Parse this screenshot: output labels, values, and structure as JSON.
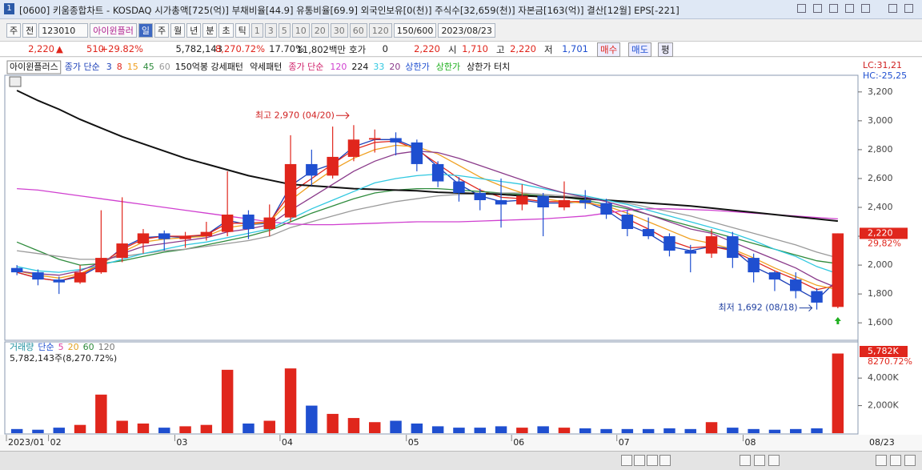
{
  "header": {
    "title": "[0600] 키움종합차트 - KOSDAQ 시가총액[725(억)] 부채비율[44.9] 유통비율[69.9] 외국인보유[0(천)] 주식수[32,659(천)] 자본금[163(억)] 결산[12월] EPS[-221]",
    "window_number": "1"
  },
  "toolbar": {
    "items": [
      "주",
      "전",
      "123010",
      "아이윈플러",
      "일",
      "주",
      "월",
      "년",
      "분",
      "초",
      "틱",
      "1",
      "3",
      "5",
      "10",
      "20",
      "30",
      "60",
      "120",
      "150/600",
      "2023/08/23"
    ]
  },
  "quote": {
    "items": [
      {
        "text": "2,220",
        "color": "#e0261c"
      },
      {
        "text": "510",
        "color": "#e0261c"
      },
      {
        "text": "+29.82%",
        "color": "#e0261c"
      },
      {
        "text": "5,782,143",
        "color": "#222222"
      },
      {
        "text": "8,270.72%",
        "color": "#e0261c"
      },
      {
        "text": "17.70%",
        "color": "#222222"
      },
      {
        "text": "11,802백만",
        "color": "#222222"
      },
      {
        "text": "호가",
        "color": "#222222"
      },
      {
        "text": "0",
        "color": "#222222"
      },
      {
        "text": "2,220",
        "color": "#e0261c"
      },
      {
        "text": "시",
        "color": "#222222"
      },
      {
        "text": "1,710",
        "color": "#e0261c"
      },
      {
        "text": "고",
        "color": "#222222"
      },
      {
        "text": "2,220",
        "color": "#e0261c"
      },
      {
        "text": "저",
        "color": "#222222"
      },
      {
        "text": "1,701",
        "color": "#1f4fd0"
      },
      {
        "text": "매수",
        "color": "#e0261c"
      },
      {
        "text": "매도",
        "color": "#1f4fd0"
      },
      {
        "text": "평",
        "color": "#222222"
      }
    ]
  },
  "chart_data": [
    {
      "type": "candlestick",
      "categories": [
        "2023/01",
        null,
        "02",
        null,
        null,
        null,
        null,
        null,
        "03",
        null,
        null,
        null,
        null,
        "04",
        null,
        null,
        null,
        null,
        null,
        "05",
        null,
        null,
        null,
        null,
        "06",
        null,
        null,
        null,
        null,
        "07",
        null,
        null,
        null,
        null,
        null,
        "08",
        null,
        null,
        null,
        null
      ],
      "open": [
        1980,
        1950,
        1900,
        1880,
        1950,
        2050,
        2150,
        2220,
        2180,
        2200,
        2230,
        2350,
        2250,
        2330,
        2700,
        2620,
        2750,
        2870,
        2880,
        2850,
        2700,
        2580,
        2500,
        2450,
        2420,
        2480,
        2400,
        2450,
        2430,
        2350,
        2250,
        2200,
        2100,
        2080,
        2200,
        2050,
        1950,
        1900,
        1820,
        1710
      ],
      "high": [
        2000,
        1970,
        1920,
        2000,
        2380,
        2470,
        2250,
        2240,
        2230,
        2300,
        2650,
        2380,
        2420,
        2900,
        2800,
        2960,
        2970,
        2940,
        2920,
        2870,
        2720,
        2610,
        2530,
        2600,
        2560,
        2500,
        2580,
        2520,
        2460,
        2380,
        2330,
        2220,
        2140,
        2250,
        2230,
        2080,
        1960,
        1950,
        1840,
        2220
      ],
      "low": [
        1930,
        1860,
        1800,
        1870,
        1940,
        2020,
        2080,
        2100,
        2120,
        2170,
        2200,
        2180,
        2200,
        2300,
        2550,
        2600,
        2720,
        2780,
        2760,
        2650,
        2540,
        2440,
        2380,
        2260,
        2380,
        2200,
        2380,
        2390,
        2320,
        2200,
        2180,
        2060,
        1950,
        2050,
        1980,
        1880,
        1820,
        1770,
        1692,
        1701
      ],
      "close": [
        1950,
        1900,
        1880,
        1950,
        2050,
        2150,
        2220,
        2180,
        2200,
        2230,
        2350,
        2250,
        2330,
        2700,
        2620,
        2750,
        2870,
        2880,
        2850,
        2700,
        2580,
        2500,
        2450,
        2420,
        2480,
        2400,
        2450,
        2430,
        2350,
        2250,
        2200,
        2100,
        2080,
        2200,
        2050,
        1950,
        1900,
        1820,
        1740,
        2220
      ],
      "up_color": "#e0261c",
      "down_color": "#1f4fd0",
      "series": [
        {
          "name": "3",
          "color": "#1b3fb8",
          "values": [
            1950,
            1910,
            1890,
            1920,
            2000,
            2120,
            2190,
            2200,
            2190,
            2210,
            2310,
            2280,
            2290,
            2550,
            2650,
            2700,
            2820,
            2870,
            2870,
            2810,
            2680,
            2560,
            2480,
            2440,
            2450,
            2430,
            2430,
            2440,
            2380,
            2280,
            2220,
            2130,
            2100,
            2130,
            2110,
            1990,
            1920,
            1840,
            1760,
            1900
          ]
        },
        {
          "name": "8",
          "color": "#e0261c",
          "values": [
            1950,
            1910,
            1890,
            1930,
            2010,
            2110,
            2180,
            2200,
            2200,
            2210,
            2290,
            2290,
            2300,
            2500,
            2600,
            2700,
            2800,
            2850,
            2860,
            2800,
            2700,
            2600,
            2520,
            2470,
            2460,
            2440,
            2440,
            2440,
            2400,
            2320,
            2250,
            2170,
            2120,
            2130,
            2100,
            2030,
            1960,
            1900,
            1830,
            1860
          ]
        },
        {
          "name": "15",
          "color": "#f0a020",
          "values": [
            1960,
            1930,
            1910,
            1940,
            2010,
            2090,
            2160,
            2180,
            2190,
            2200,
            2260,
            2280,
            2300,
            2450,
            2560,
            2660,
            2740,
            2800,
            2830,
            2820,
            2770,
            2690,
            2610,
            2550,
            2500,
            2460,
            2440,
            2430,
            2410,
            2360,
            2300,
            2240,
            2180,
            2150,
            2110,
            2050,
            1980,
            1920,
            1860,
            1830
          ]
        },
        {
          "name": "45",
          "color": "#2e8b3c",
          "values": [
            2160,
            2100,
            2040,
            2000,
            2010,
            2030,
            2060,
            2090,
            2110,
            2140,
            2170,
            2200,
            2240,
            2300,
            2360,
            2410,
            2460,
            2500,
            2520,
            2530,
            2530,
            2520,
            2510,
            2500,
            2490,
            2480,
            2470,
            2450,
            2420,
            2390,
            2350,
            2310,
            2270,
            2230,
            2190,
            2150,
            2110,
            2070,
            2030,
            2010
          ]
        },
        {
          "name": "60",
          "color": "#9a9a9a",
          "values": [
            2100,
            2080,
            2060,
            2040,
            2040,
            2060,
            2080,
            2100,
            2110,
            2130,
            2150,
            2170,
            2200,
            2260,
            2300,
            2340,
            2380,
            2410,
            2440,
            2460,
            2480,
            2490,
            2495,
            2500,
            2500,
            2490,
            2480,
            2470,
            2450,
            2430,
            2400,
            2370,
            2340,
            2300,
            2260,
            2220,
            2180,
            2140,
            2090,
            2050
          ]
        },
        {
          "name": "120",
          "color": "#d040d0",
          "values": [
            2530,
            2520,
            2500,
            2480,
            2460,
            2440,
            2420,
            2400,
            2380,
            2360,
            2340,
            2320,
            2300,
            2285,
            2280,
            2280,
            2285,
            2290,
            2295,
            2300,
            2300,
            2300,
            2305,
            2310,
            2315,
            2320,
            2330,
            2340,
            2360,
            2380,
            2390,
            2390,
            2385,
            2380,
            2370,
            2360,
            2350,
            2340,
            2330,
            2320
          ]
        },
        {
          "name": "224",
          "color": "#111111",
          "values": [
            3210,
            3140,
            3080,
            3010,
            2950,
            2890,
            2840,
            2790,
            2740,
            2700,
            2660,
            2620,
            2590,
            2560,
            2550,
            2540,
            2530,
            2525,
            2520,
            2515,
            2505,
            2500,
            2495,
            2490,
            2480,
            2475,
            2470,
            2460,
            2450,
            2440,
            2430,
            2420,
            2410,
            2395,
            2380,
            2365,
            2350,
            2335,
            2320,
            2305
          ]
        },
        {
          "name": "33",
          "color": "#30c8e0",
          "values": [
            1990,
            1960,
            1950,
            1970,
            2000,
            2040,
            2080,
            2110,
            2140,
            2160,
            2190,
            2220,
            2250,
            2320,
            2390,
            2450,
            2510,
            2570,
            2600,
            2620,
            2630,
            2620,
            2600,
            2580,
            2560,
            2530,
            2500,
            2480,
            2450,
            2420,
            2380,
            2340,
            2300,
            2260,
            2220,
            2170,
            2110,
            2060,
            1990,
            1940
          ]
        },
        {
          "name": "20",
          "color": "#8a3a8a",
          "values": [
            1960,
            1940,
            1930,
            1960,
            2020,
            2080,
            2130,
            2150,
            2170,
            2190,
            2230,
            2250,
            2280,
            2380,
            2470,
            2560,
            2650,
            2720,
            2770,
            2790,
            2780,
            2740,
            2690,
            2640,
            2590,
            2540,
            2500,
            2470,
            2440,
            2400,
            2350,
            2300,
            2250,
            2220,
            2160,
            2100,
            2040,
            1980,
            1900,
            1840
          ]
        }
      ],
      "legend_texts": [
        {
          "text": "아이윈플러스",
          "color": "#111111"
        },
        {
          "text": "종가 단순",
          "color": "#1b3fb8"
        },
        {
          "text": "150억봉 강세패턴",
          "color": "#111111"
        },
        {
          "text": "약세패턴",
          "color": "#111111"
        },
        {
          "text": "종가 단순",
          "color": "#d0206a"
        },
        {
          "text": "상한가",
          "color": "#1f4fd0"
        },
        {
          "text": "상한가",
          "color": "#20b020"
        },
        {
          "text": "상한가 터치",
          "color": "#111111"
        }
      ],
      "ylim": [
        1490,
        3310
      ],
      "yticks": [
        {
          "value": 1600,
          "label": "1,600"
        },
        {
          "value": 1800,
          "label": "1,800"
        },
        {
          "value": 2000,
          "label": "2,000"
        },
        {
          "value": 2200,
          "label": "2,200"
        },
        {
          "value": 2400,
          "label": "2,400"
        },
        {
          "value": 2600,
          "label": "2,600"
        },
        {
          "value": 2800,
          "label": "2,800"
        },
        {
          "value": 3000,
          "label": "3,000"
        },
        {
          "value": 3200,
          "label": "3,200"
        }
      ],
      "grid": false,
      "annotations": {
        "high": "최고 2,970 (04/20)",
        "low": "최저 1,692 (08/18)",
        "lc": "LC:31,21",
        "hc": "HC:-25,25",
        "price_tag": "2,220",
        "change_tag": "29,82%"
      }
    },
    {
      "type": "bar",
      "values": [
        300,
        250,
        400,
        600,
        2800,
        900,
        700,
        400,
        500,
        600,
        4600,
        700,
        900,
        4700,
        2000,
        1400,
        1100,
        800,
        900,
        700,
        500,
        400,
        400,
        500,
        400,
        500,
        400,
        350,
        300,
        300,
        300,
        350,
        300,
        800,
        400,
        300,
        250,
        300,
        350,
        5782
      ],
      "ylim": [
        0,
        6510
      ],
      "yticks": [
        {
          "value": 2000,
          "label": "2,000K"
        },
        {
          "value": 4000,
          "label": "4,000K"
        }
      ],
      "legend_texts": [
        {
          "text": "거래량",
          "color": "#2090a0"
        },
        {
          "text": "단순",
          "color": "#1f4fd0"
        },
        {
          "text": "5",
          "color": "#e040a0"
        },
        {
          "text": "20",
          "color": "#e0a020"
        },
        {
          "text": "60",
          "color": "#2e8b3c"
        },
        {
          "text": "120",
          "color": "#777777"
        }
      ],
      "subtitle": "5,782,143주(8,270.72%)",
      "value_tag": "5,782K",
      "pct_tag": "8270.72%",
      "last_date_label": "08/23"
    }
  ]
}
